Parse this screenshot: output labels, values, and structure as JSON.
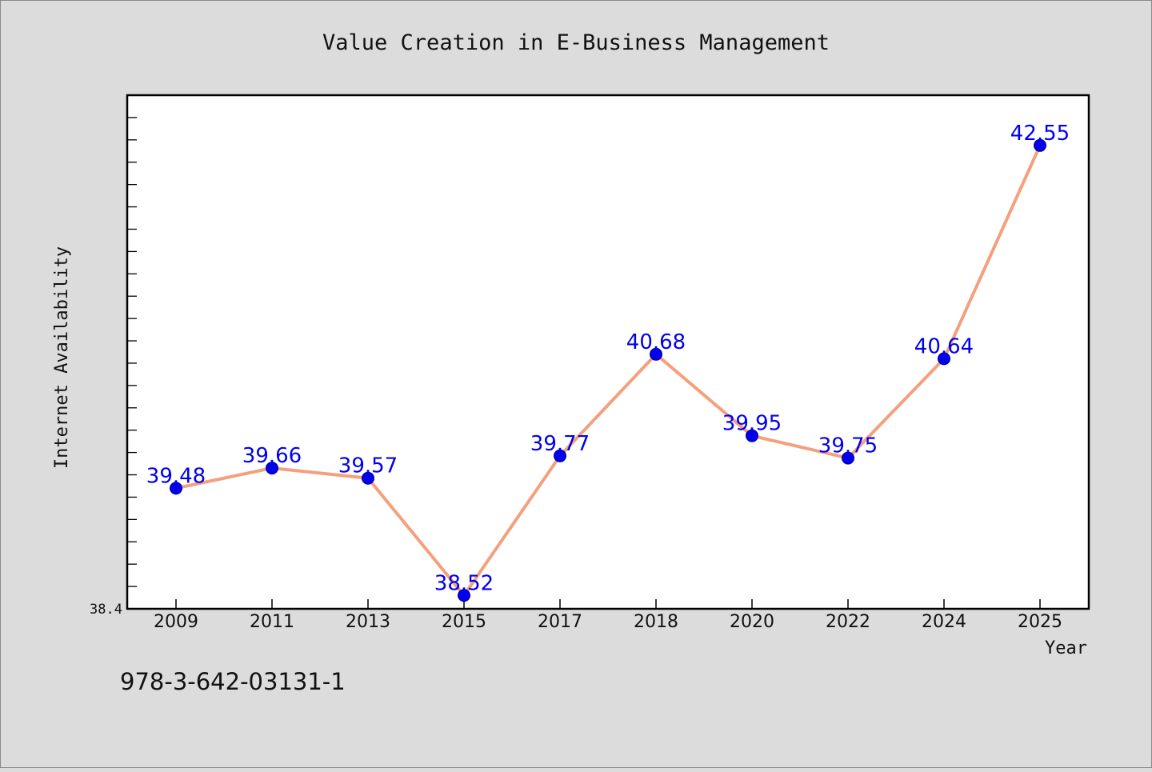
{
  "chart_data": {
    "type": "line",
    "title": "Value Creation in E-Business Management",
    "xlabel": "Year",
    "ylabel": "Internet Availability",
    "categories": [
      "2009",
      "2011",
      "2013",
      "2015",
      "2017",
      "2018",
      "2020",
      "2022",
      "2024",
      "2025"
    ],
    "series": [
      {
        "values": [
          39.48,
          39.66,
          39.57,
          38.52,
          39.77,
          40.68,
          39.95,
          39.75,
          40.64,
          42.55
        ],
        "labels": [
          "39.48",
          "39.66",
          "39.57",
          "38.52",
          "39.77",
          "40.68",
          "39.95",
          "39.75",
          "40.64",
          "42.55"
        ]
      }
    ],
    "ylim": [
      38.4,
      43.0
    ],
    "yticks_labeled": [
      "38.4"
    ],
    "grid": false,
    "data_labels": true,
    "colors": {
      "line": "#f4a07e",
      "marker": "#0000ee",
      "label": "#0000ee",
      "background": "#dcdcdc",
      "plot_background": "#ffffff"
    }
  },
  "footer": {
    "isbn": "978-3-642-03131-1"
  }
}
